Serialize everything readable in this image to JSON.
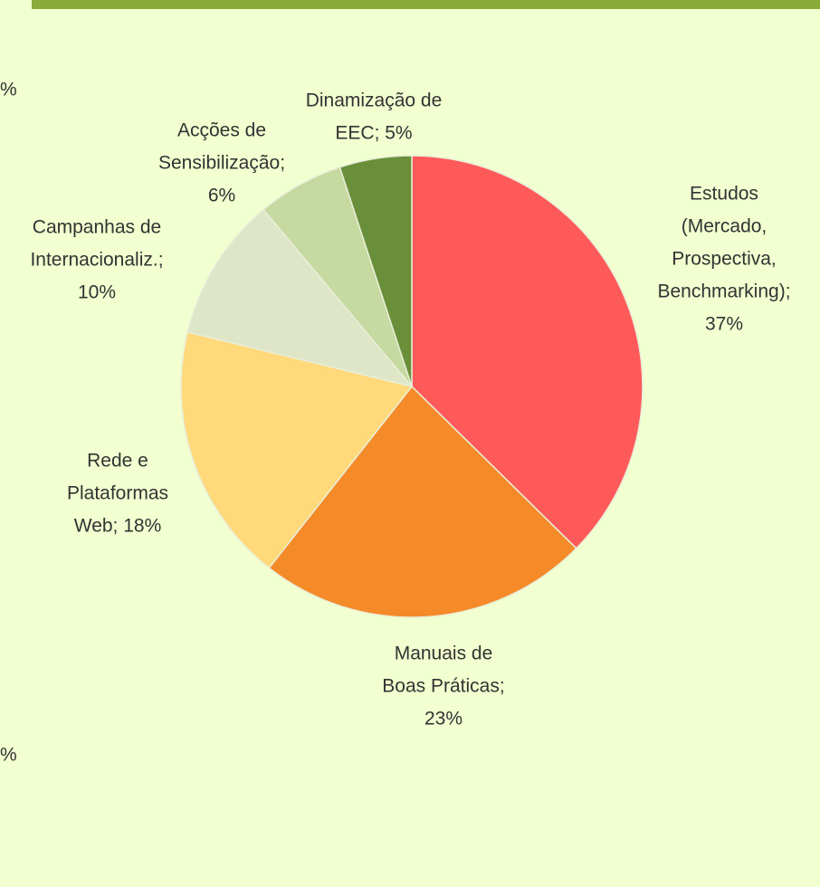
{
  "chart_data": {
    "type": "pie",
    "values": [
      37,
      23,
      18,
      10,
      6,
      5
    ],
    "value_labels": [
      [
        "Estudos",
        "(Mercado,",
        "Prospectiva,",
        "Benchmarking);",
        "37%"
      ],
      [
        "Manuais de",
        "Boas Práticas;",
        "23%"
      ],
      [
        "Rede e",
        "Plataformas",
        "Web; 18%"
      ],
      [
        "Campanhas de",
        "Internacionaliz.;",
        "10%"
      ],
      [
        "Acções de",
        "Sensibilização;",
        "6%"
      ],
      [
        "Dinamização de",
        "EEC; 5%"
      ]
    ],
    "colors": [
      "#ff5a5a",
      "#f58a28",
      "#ffd97a",
      "#dfe6c8",
      "#c6d9a0",
      "#6a8f3a"
    ],
    "edge_labels": [
      "%",
      "%"
    ]
  }
}
